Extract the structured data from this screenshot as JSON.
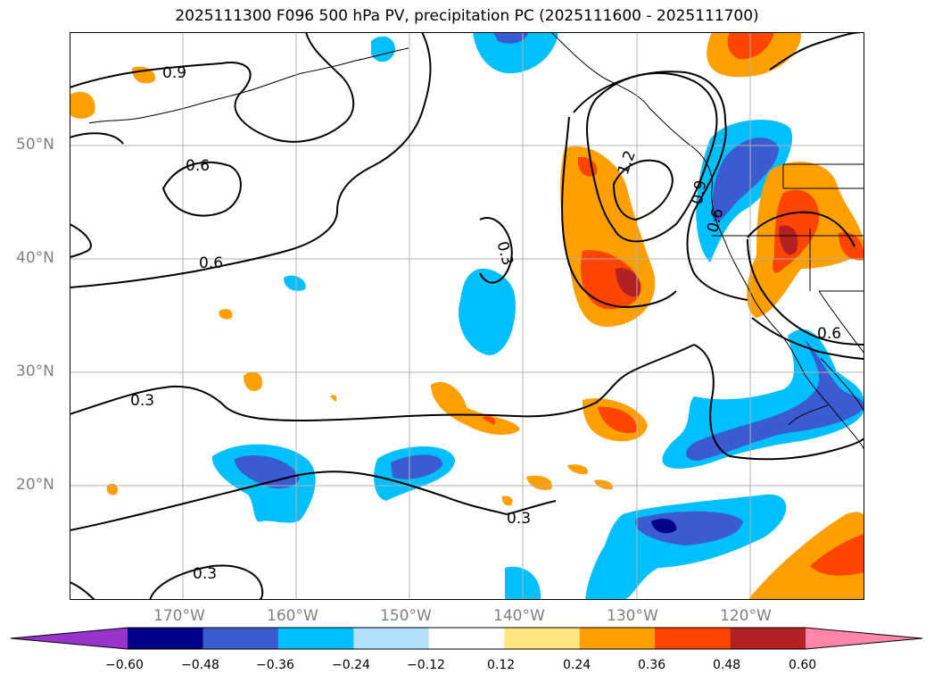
{
  "title": "2025111300 F096 500 hPa PV, precipitation PC (2025111600 - 2025111700)",
  "map": {
    "lat_ticks": [
      "50°N",
      "40°N",
      "30°N",
      "20°N"
    ],
    "lon_ticks": [
      "170°W",
      "160°W",
      "150°W",
      "140°W",
      "130°W",
      "120°W"
    ],
    "contour_labels": [
      "0.9",
      "0.6",
      "0.6",
      "0.3",
      "0.3",
      "0.3",
      "0.3",
      "1.2",
      "0.9",
      "0.6",
      "0.6"
    ]
  },
  "colorbar": {
    "tick_labels": [
      "−0.60",
      "−0.48",
      "−0.36",
      "−0.24",
      "−0.12",
      "0.12",
      "0.24",
      "0.36",
      "0.48",
      "0.60"
    ],
    "colors": [
      "#9933cc",
      "#00008b",
      "#3b5bd0",
      "#00bfff",
      "#b3e0fb",
      "#ffffff",
      "#ffe680",
      "#ff9f00",
      "#ff4500",
      "#b22222",
      "#ff85aa"
    ]
  }
}
